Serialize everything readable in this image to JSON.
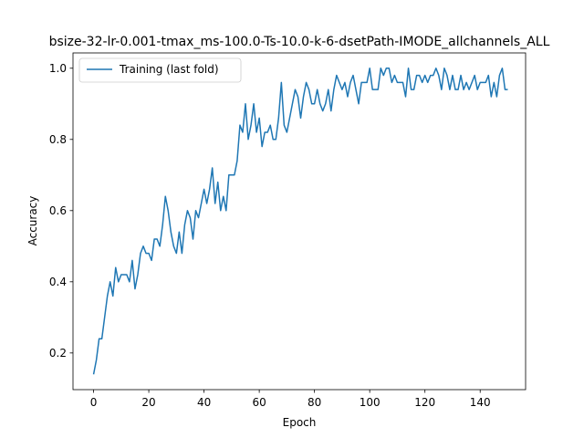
{
  "chart_data": {
    "type": "line",
    "title": "bsize-32-lr-0.001-tmax_ms-100.0-Ts-10.0-k-6-dsetPath-IMODE_allchannels_ALL",
    "xlabel": "Epoch",
    "ylabel": "Accuracy",
    "xlim": [
      -7.45,
      156.45
    ],
    "ylim": [
      0.097,
      1.043
    ],
    "xticks": [
      0,
      20,
      40,
      60,
      80,
      100,
      120,
      140
    ],
    "yticks": [
      0.2,
      0.4,
      0.6,
      0.8,
      1.0
    ],
    "xtick_labels": [
      "0",
      "20",
      "40",
      "60",
      "80",
      "100",
      "120",
      "140"
    ],
    "ytick_labels": [
      "0.2",
      "0.4",
      "0.6",
      "0.8",
      "1.0"
    ],
    "grid": false,
    "legend_position": "top-left",
    "series": [
      {
        "name": "Training (last fold)",
        "color": "#1f77b4",
        "values": [
          0.14,
          0.18,
          0.24,
          0.24,
          0.3,
          0.36,
          0.4,
          0.36,
          0.44,
          0.4,
          0.42,
          0.42,
          0.42,
          0.4,
          0.46,
          0.38,
          0.42,
          0.48,
          0.5,
          0.48,
          0.48,
          0.46,
          0.52,
          0.52,
          0.5,
          0.56,
          0.64,
          0.6,
          0.54,
          0.5,
          0.48,
          0.54,
          0.48,
          0.56,
          0.6,
          0.58,
          0.52,
          0.6,
          0.58,
          0.62,
          0.66,
          0.62,
          0.66,
          0.72,
          0.62,
          0.68,
          0.6,
          0.64,
          0.6,
          0.7,
          0.7,
          0.7,
          0.74,
          0.84,
          0.82,
          0.9,
          0.8,
          0.84,
          0.9,
          0.82,
          0.86,
          0.78,
          0.82,
          0.82,
          0.84,
          0.8,
          0.8,
          0.86,
          0.96,
          0.84,
          0.82,
          0.86,
          0.9,
          0.94,
          0.92,
          0.86,
          0.92,
          0.96,
          0.94,
          0.9,
          0.9,
          0.94,
          0.9,
          0.88,
          0.9,
          0.94,
          0.88,
          0.94,
          0.98,
          0.96,
          0.94,
          0.96,
          0.92,
          0.96,
          0.98,
          0.94,
          0.9,
          0.96,
          0.96,
          0.96,
          1.0,
          0.94,
          0.94,
          0.94,
          1.0,
          0.98,
          1.0,
          1.0,
          0.96,
          0.98,
          0.96,
          0.96,
          0.96,
          0.92,
          1.0,
          0.94,
          0.94,
          0.98,
          0.98,
          0.96,
          0.98,
          0.96,
          0.98,
          0.98,
          1.0,
          0.98,
          0.94,
          1.0,
          0.98,
          0.94,
          0.98,
          0.94,
          0.94,
          0.98,
          0.94,
          0.96,
          0.94,
          0.96,
          0.98,
          0.94,
          0.96,
          0.96,
          0.96,
          0.98,
          0.92,
          0.96,
          0.92,
          0.98,
          1.0,
          0.94,
          0.94
        ]
      }
    ]
  }
}
